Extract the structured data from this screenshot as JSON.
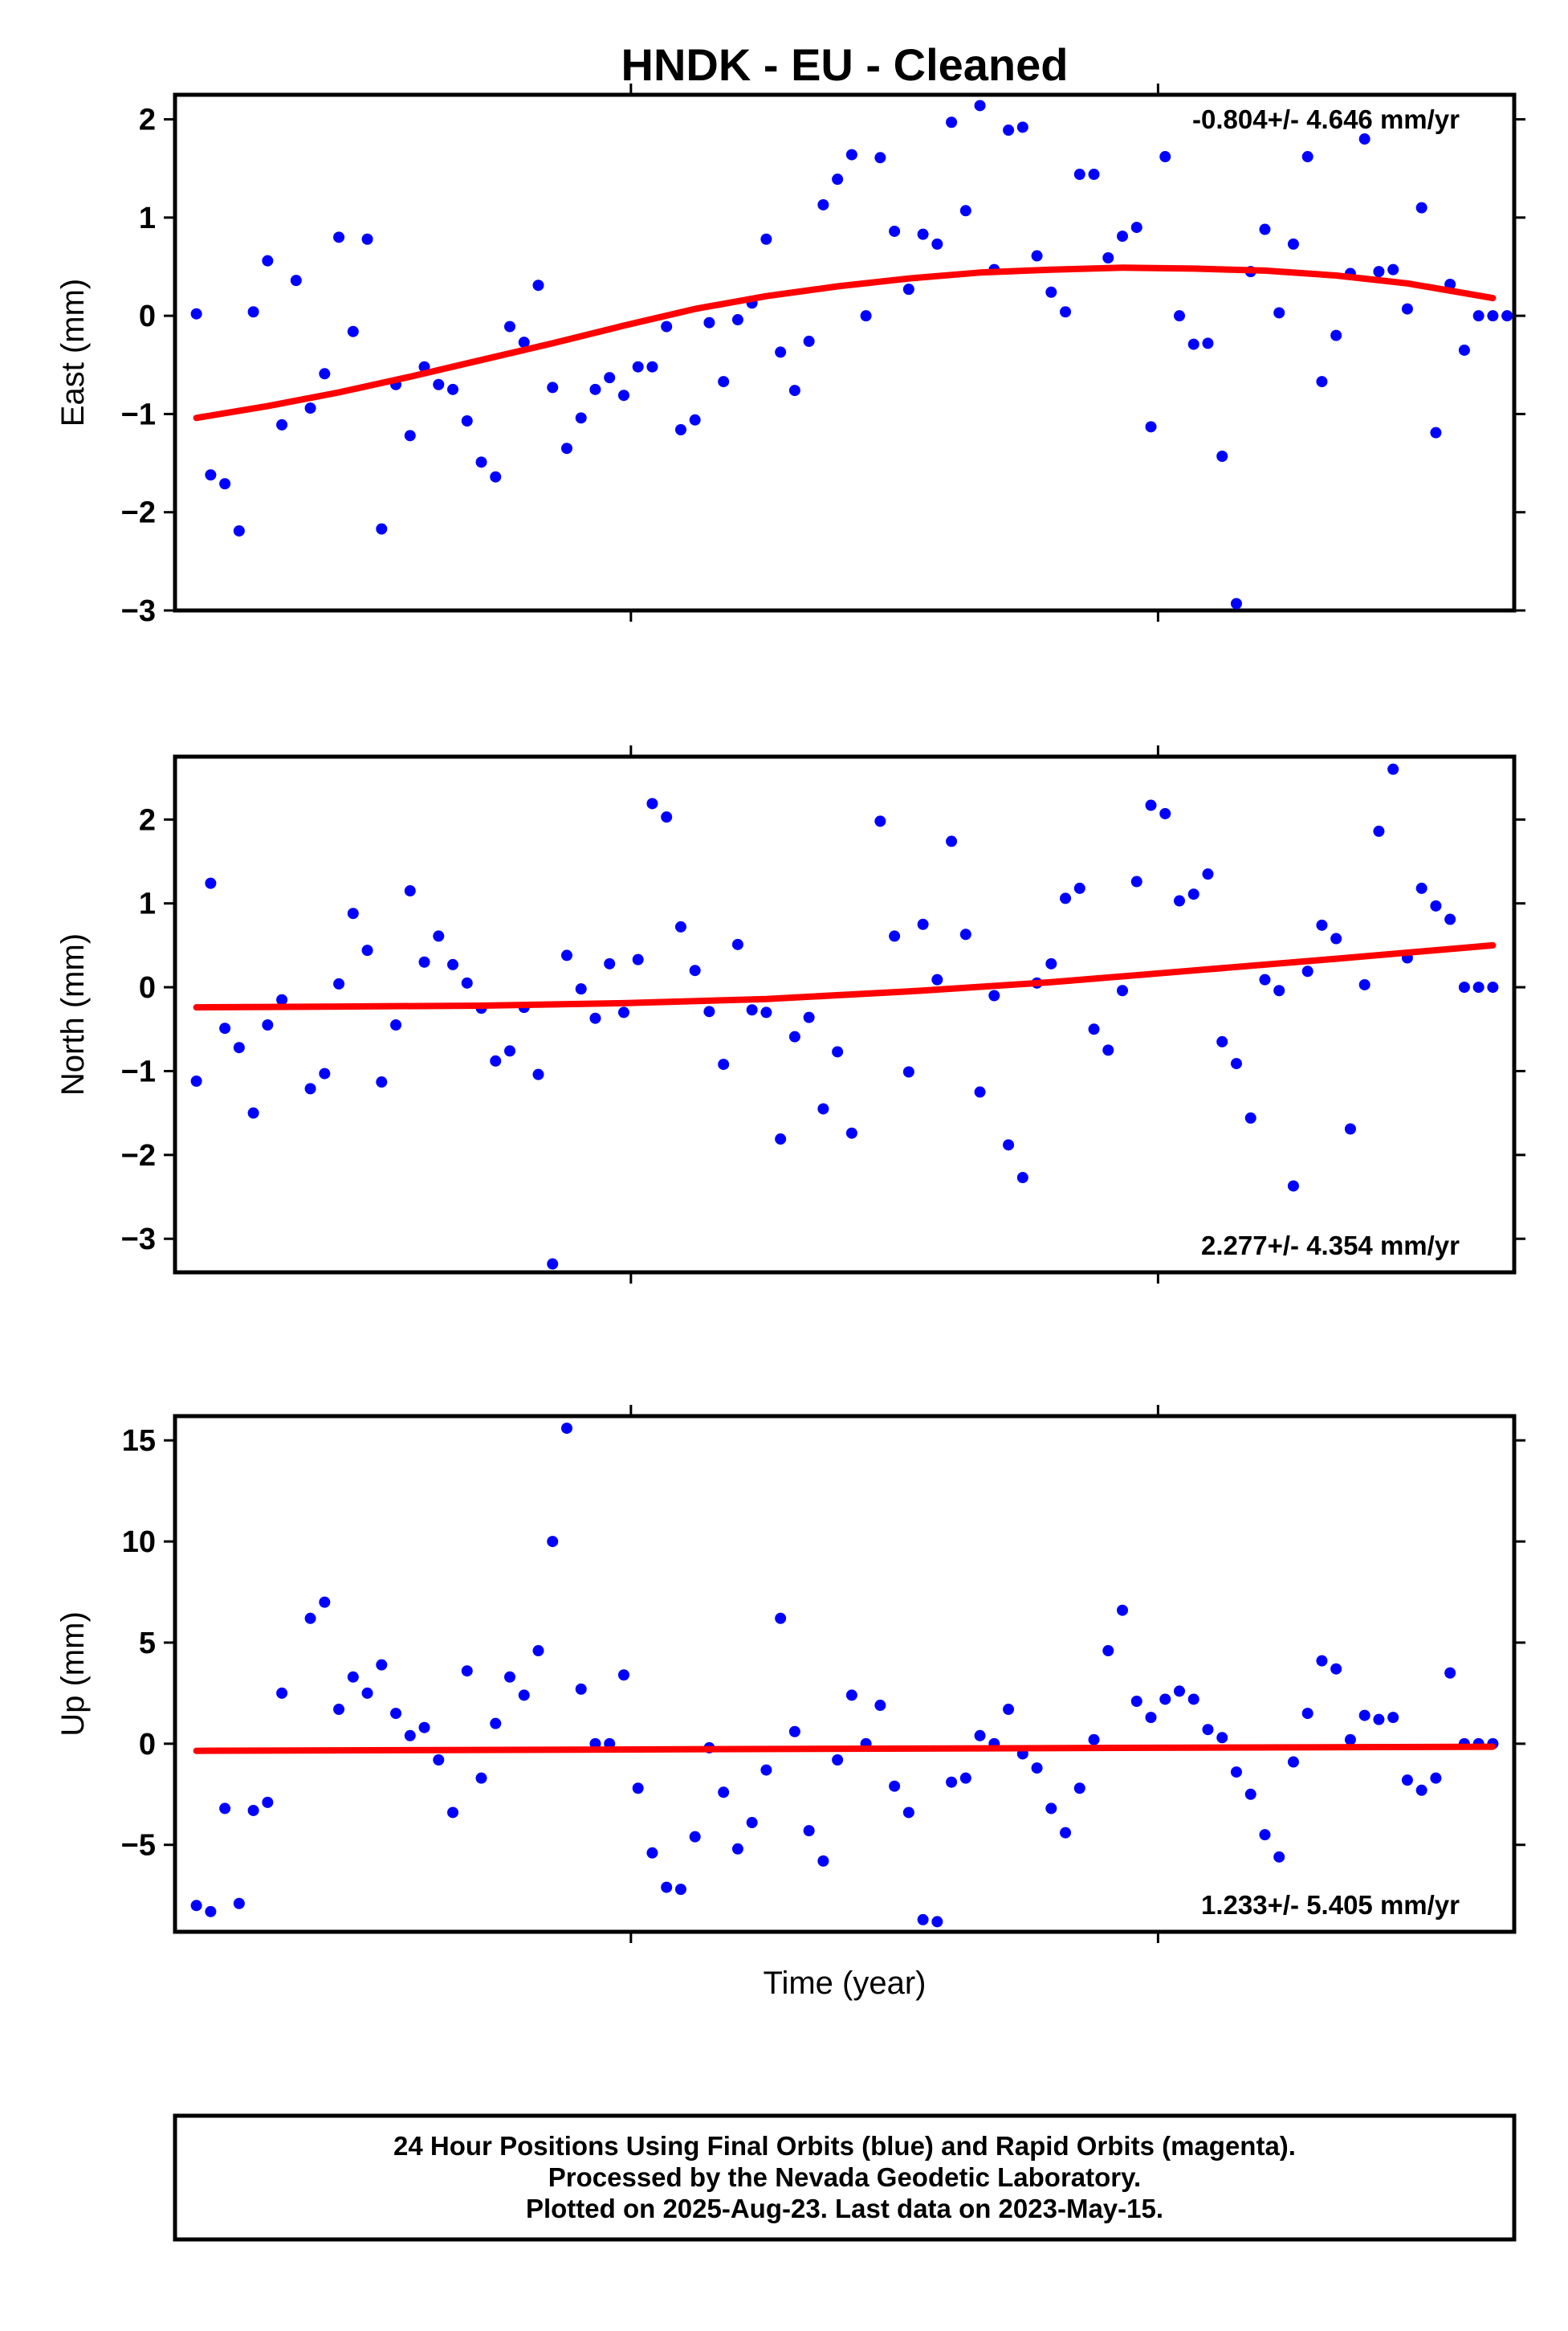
{
  "title": "HNDK  - EU - Cleaned",
  "xlabel": "Time (year)",
  "colors": {
    "points": "#0000ff",
    "fit": "#ff0000",
    "frame": "#000000"
  },
  "footer": {
    "line1": "24 Hour Positions Using Final Orbits (blue) and Rapid Orbits (magenta).",
    "line2": "Processed by the Nevada Geodetic Laboratory.",
    "line3": "Plotted on 2025-Aug-23. Last data on 2023-May-15."
  },
  "chart_data": [
    {
      "type": "scatter",
      "ylabel": "East (mm)",
      "rate": "-0.804+/- 4.646 mm/yr",
      "rate_position": "top-right",
      "ylim": [
        -3,
        2.25
      ],
      "yticks": [
        2,
        1,
        0,
        -1,
        -2,
        -3
      ],
      "ytick_labels": [
        "2",
        "1",
        "0",
        "−1",
        "−2",
        "−3"
      ],
      "x": [
        0,
        1,
        2,
        3,
        4,
        5,
        6,
        7,
        8,
        9,
        10,
        11,
        12,
        13,
        14,
        15,
        16,
        17,
        18,
        19,
        20,
        21,
        22,
        23,
        24,
        25,
        26,
        27,
        28,
        29,
        30,
        31,
        32,
        33,
        34,
        35,
        36,
        37,
        38,
        39,
        40,
        41,
        42,
        43,
        44,
        45,
        46,
        47,
        48,
        49,
        50,
        51,
        52,
        53,
        54,
        55,
        56,
        57,
        58,
        59,
        60,
        61,
        62,
        63,
        64,
        65,
        66,
        67,
        68,
        69,
        70,
        71,
        72,
        73,
        74,
        75,
        76,
        77,
        78,
        79,
        80,
        81,
        82,
        83,
        84,
        85,
        86,
        87,
        88,
        89,
        90,
        91,
        92
      ],
      "y": [
        0.02,
        -1.62,
        -1.71,
        -2.19,
        0.04,
        0.56,
        -1.11,
        0.36,
        -0.94,
        -0.59,
        0.8,
        -0.16,
        0.78,
        -2.17,
        -0.7,
        -1.22,
        -0.52,
        -0.7,
        -0.75,
        -1.07,
        -1.49,
        -1.64,
        -0.11,
        -0.27,
        0.31,
        -0.73,
        -1.35,
        -1.04,
        -0.75,
        -0.63,
        -0.81,
        -0.52,
        -0.52,
        -0.11,
        -1.16,
        -1.06,
        -0.07,
        -0.67,
        -0.04,
        0.13,
        0.78,
        -0.37,
        -0.76,
        -0.26,
        1.13,
        1.39,
        1.64,
        0.0,
        1.61,
        0.86,
        0.27,
        0.83,
        0.73,
        1.97,
        1.07,
        2.14,
        0.47,
        1.89,
        1.92,
        0.61,
        0.24,
        0.04,
        1.44,
        1.44,
        0.59,
        0.81,
        0.9,
        -1.13,
        1.62,
        0.0,
        -0.29,
        -0.28,
        -1.43,
        -2.93,
        0.45,
        0.88,
        0.03,
        0.73,
        1.62,
        -0.67,
        -0.2,
        0.43,
        1.8,
        0.45,
        0.47,
        0.07,
        1.1,
        -1.19,
        0.32,
        -0.35,
        0.0,
        0.0,
        0.0
      ],
      "fit": {
        "x": [
          0,
          5,
          10,
          15,
          20,
          25,
          30,
          35,
          40,
          45,
          50,
          55,
          60,
          65,
          70,
          75,
          80,
          85,
          91
        ],
        "y": [
          -1.04,
          -0.92,
          -0.78,
          -0.62,
          -0.45,
          -0.28,
          -0.1,
          0.07,
          0.2,
          0.3,
          0.38,
          0.44,
          0.47,
          0.49,
          0.48,
          0.46,
          0.41,
          0.33,
          0.18
        ]
      }
    },
    {
      "type": "scatter",
      "ylabel": "North (mm)",
      "rate": "2.277+/- 4.354 mm/yr",
      "rate_position": "bottom-right",
      "ylim": [
        -3.4,
        2.75
      ],
      "yticks": [
        2,
        1,
        0,
        -1,
        -2,
        -3
      ],
      "ytick_labels": [
        "2",
        "1",
        "0",
        "−1",
        "−2",
        "−3"
      ],
      "x": [
        0,
        1,
        2,
        3,
        4,
        5,
        6,
        8,
        9,
        10,
        11,
        12,
        13,
        14,
        15,
        16,
        17,
        18,
        19,
        20,
        21,
        22,
        23,
        24,
        25,
        26,
        27,
        28,
        29,
        30,
        31,
        32,
        33,
        34,
        35,
        36,
        37,
        38,
        39,
        40,
        41,
        42,
        43,
        44,
        45,
        46,
        48,
        49,
        50,
        51,
        52,
        53,
        54,
        55,
        56,
        57,
        58,
        59,
        60,
        61,
        62,
        63,
        64,
        65,
        66,
        67,
        68,
        69,
        70,
        71,
        72,
        73,
        74,
        75,
        76,
        77,
        78,
        79,
        80,
        81,
        82,
        83,
        84,
        85,
        86,
        87,
        88,
        89,
        90,
        91
      ],
      "y": [
        -1.12,
        1.24,
        -0.49,
        -0.72,
        -1.5,
        -0.45,
        -0.15,
        -1.21,
        -1.03,
        0.04,
        0.88,
        0.44,
        -1.13,
        -0.45,
        1.15,
        0.3,
        0.61,
        0.27,
        0.05,
        -0.25,
        -0.88,
        -0.76,
        -0.24,
        -1.04,
        -3.3,
        0.38,
        -0.02,
        -0.37,
        0.28,
        -0.3,
        0.33,
        2.19,
        2.03,
        0.72,
        0.2,
        -0.29,
        -0.92,
        0.51,
        -0.27,
        -0.3,
        -1.81,
        -0.59,
        -0.36,
        -1.45,
        -0.77,
        -1.74,
        1.98,
        0.61,
        -1.01,
        0.75,
        0.09,
        1.74,
        0.63,
        -1.25,
        -0.1,
        -1.88,
        -2.27,
        0.05,
        0.28,
        1.06,
        1.18,
        -0.5,
        -0.75,
        -0.04,
        1.26,
        2.17,
        2.07,
        1.03,
        1.11,
        1.35,
        -0.65,
        -0.91,
        -1.56,
        0.09,
        -0.04,
        -2.37,
        0.19,
        0.74,
        0.58,
        -1.69,
        0.03,
        1.86,
        2.6,
        0.35,
        1.18,
        0.97,
        0.81,
        0.0,
        0.0,
        0.0
      ],
      "fit": {
        "x": [
          0,
          10,
          20,
          30,
          40,
          50,
          60,
          70,
          80,
          91
        ],
        "y": [
          -0.24,
          -0.23,
          -0.22,
          -0.19,
          -0.14,
          -0.05,
          0.06,
          0.2,
          0.34,
          0.5
        ]
      }
    },
    {
      "type": "scatter",
      "ylabel": "Up (mm)",
      "rate": "1.233+/- 5.405 mm/yr",
      "rate_position": "bottom-right",
      "ylim": [
        -9.3,
        16.2
      ],
      "yticks": [
        15,
        10,
        5,
        0,
        -5
      ],
      "ytick_labels": [
        "15",
        "10",
        "5",
        "0",
        "−5"
      ],
      "x": [
        0,
        1,
        2,
        3,
        4,
        5,
        6,
        8,
        9,
        10,
        11,
        12,
        13,
        14,
        15,
        16,
        17,
        18,
        19,
        20,
        21,
        22,
        23,
        24,
        25,
        26,
        27,
        28,
        29,
        30,
        31,
        32,
        33,
        34,
        35,
        36,
        37,
        38,
        39,
        40,
        41,
        42,
        43,
        44,
        45,
        46,
        47,
        48,
        49,
        50,
        51,
        52,
        53,
        54,
        55,
        56,
        57,
        58,
        59,
        60,
        61,
        62,
        63,
        64,
        65,
        66,
        67,
        68,
        69,
        70,
        71,
        72,
        73,
        74,
        75,
        76,
        77,
        78,
        79,
        80,
        81,
        82,
        83,
        84,
        85,
        86,
        87,
        88,
        89,
        90,
        91
      ],
      "y": [
        -8.0,
        -8.3,
        -3.2,
        -7.9,
        -3.3,
        -2.9,
        2.5,
        6.2,
        7.0,
        1.7,
        3.3,
        2.5,
        3.9,
        1.5,
        0.4,
        0.8,
        -0.8,
        -3.4,
        3.6,
        -1.7,
        1.0,
        3.3,
        2.4,
        4.6,
        10.0,
        15.6,
        2.7,
        0.0,
        0.0,
        3.4,
        -2.2,
        -5.4,
        -7.1,
        -7.2,
        -4.6,
        -0.2,
        -2.4,
        -5.2,
        -3.9,
        -1.3,
        6.2,
        0.6,
        -4.3,
        -5.8,
        -0.8,
        2.4,
        0.0,
        1.9,
        -2.1,
        -3.4,
        -8.7,
        -8.8,
        -1.9,
        -1.7,
        0.4,
        0.0,
        1.7,
        -0.5,
        -1.2,
        -3.2,
        -4.4,
        -2.2,
        0.2,
        4.6,
        6.6,
        2.1,
        1.3,
        2.2,
        2.6,
        2.2,
        0.7,
        0.3,
        -1.4,
        -2.5,
        -4.5,
        -5.6,
        -0.9,
        1.5,
        4.1,
        3.7,
        0.2,
        1.4,
        1.2,
        1.3,
        -1.8,
        -2.3,
        -1.7,
        3.5,
        0.0,
        0.0,
        0.0
      ],
      "fit": {
        "x": [
          0,
          91
        ],
        "y": [
          -0.35,
          -0.15
        ]
      }
    }
  ]
}
